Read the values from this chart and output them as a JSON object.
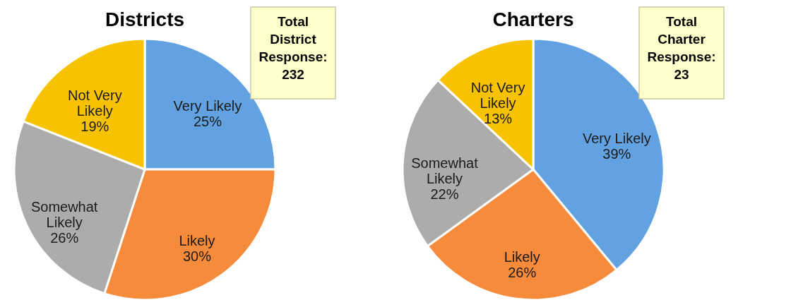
{
  "chart_data": [
    {
      "type": "pie",
      "title": "Districts",
      "categories": [
        "Very Likely",
        "Likely",
        "Somewhat Likely",
        "Not Very Likely"
      ],
      "values": [
        25,
        30,
        26,
        19
      ],
      "colors": [
        "#62a2e0",
        "#f68b3b",
        "#acacac",
        "#f7c200"
      ],
      "value_labels": [
        "25%",
        "30%",
        "26%",
        "19%"
      ],
      "annotations": [
        "Total District Response: 232"
      ],
      "legend": false
    },
    {
      "type": "pie",
      "title": "Charters",
      "categories": [
        "Very Likely",
        "Likely",
        "Somewhat Likely",
        "Not Very Likely"
      ],
      "values": [
        39,
        26,
        22,
        13
      ],
      "colors": [
        "#62a2e0",
        "#f68b3b",
        "#acacac",
        "#f7c200"
      ],
      "value_labels": [
        "39%",
        "26%",
        "22%",
        "13%"
      ],
      "annotations": [
        "Total Charter Response: 23"
      ],
      "legend": false
    }
  ]
}
